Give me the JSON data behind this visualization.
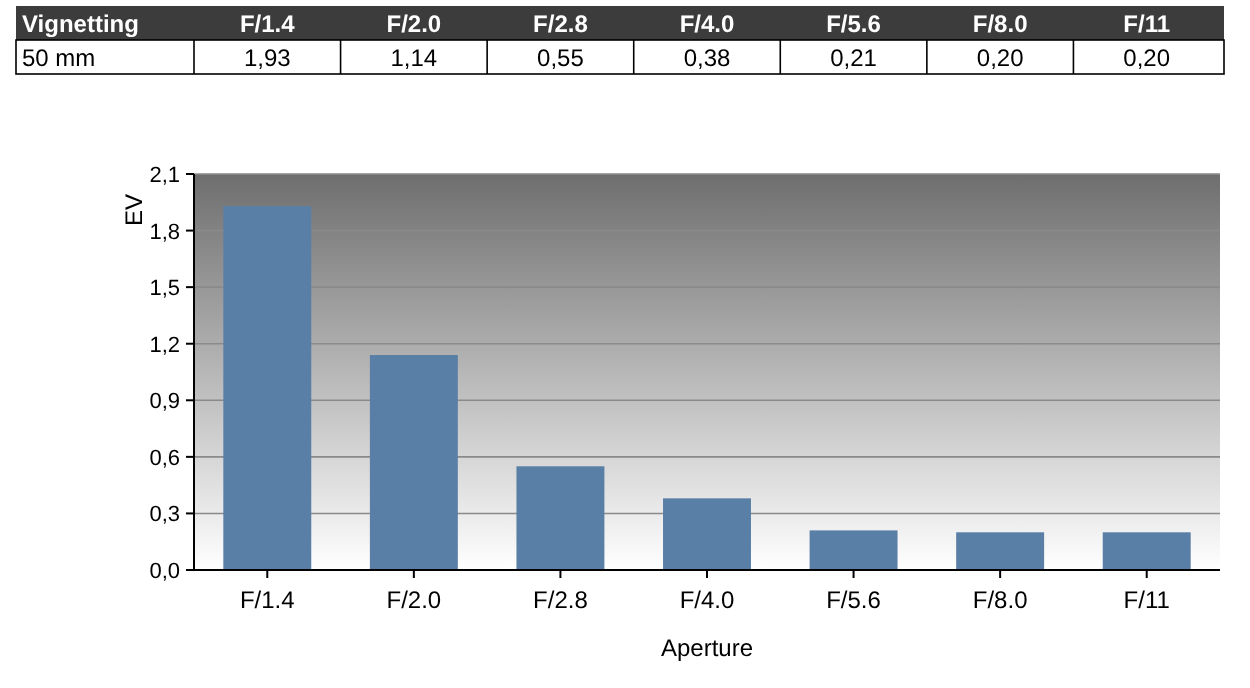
{
  "chart_data": {
    "type": "bar",
    "title": "Vignetting",
    "xlabel": "Aperture",
    "ylabel": "EV",
    "categories": [
      "F/1.4",
      "F/2.0",
      "F/2.8",
      "F/4.0",
      "F/5.6",
      "F/8.0",
      "F/11"
    ],
    "series": [
      {
        "name": "50 mm",
        "color": "#5a7fa6",
        "values": [
          1.93,
          1.14,
          0.55,
          0.38,
          0.21,
          0.2,
          0.2
        ],
        "value_labels": [
          "1,93",
          "1,14",
          "0,55",
          "0,38",
          "0,21",
          "0,20",
          "0,20"
        ]
      }
    ],
    "ylim": [
      0,
      2.1
    ],
    "yticks": [
      {
        "value": 0,
        "label": "0,0"
      },
      {
        "value": 0.3,
        "label": "0,3"
      },
      {
        "value": 0.6,
        "label": "0,6"
      },
      {
        "value": 0.9,
        "label": "0,9"
      },
      {
        "value": 1.2,
        "label": "1,2"
      },
      {
        "value": 1.5,
        "label": "1,5"
      },
      {
        "value": 1.8,
        "label": "1,8"
      },
      {
        "value": 2.1,
        "label": "2,1"
      }
    ],
    "grid": "y",
    "legend": "top"
  }
}
